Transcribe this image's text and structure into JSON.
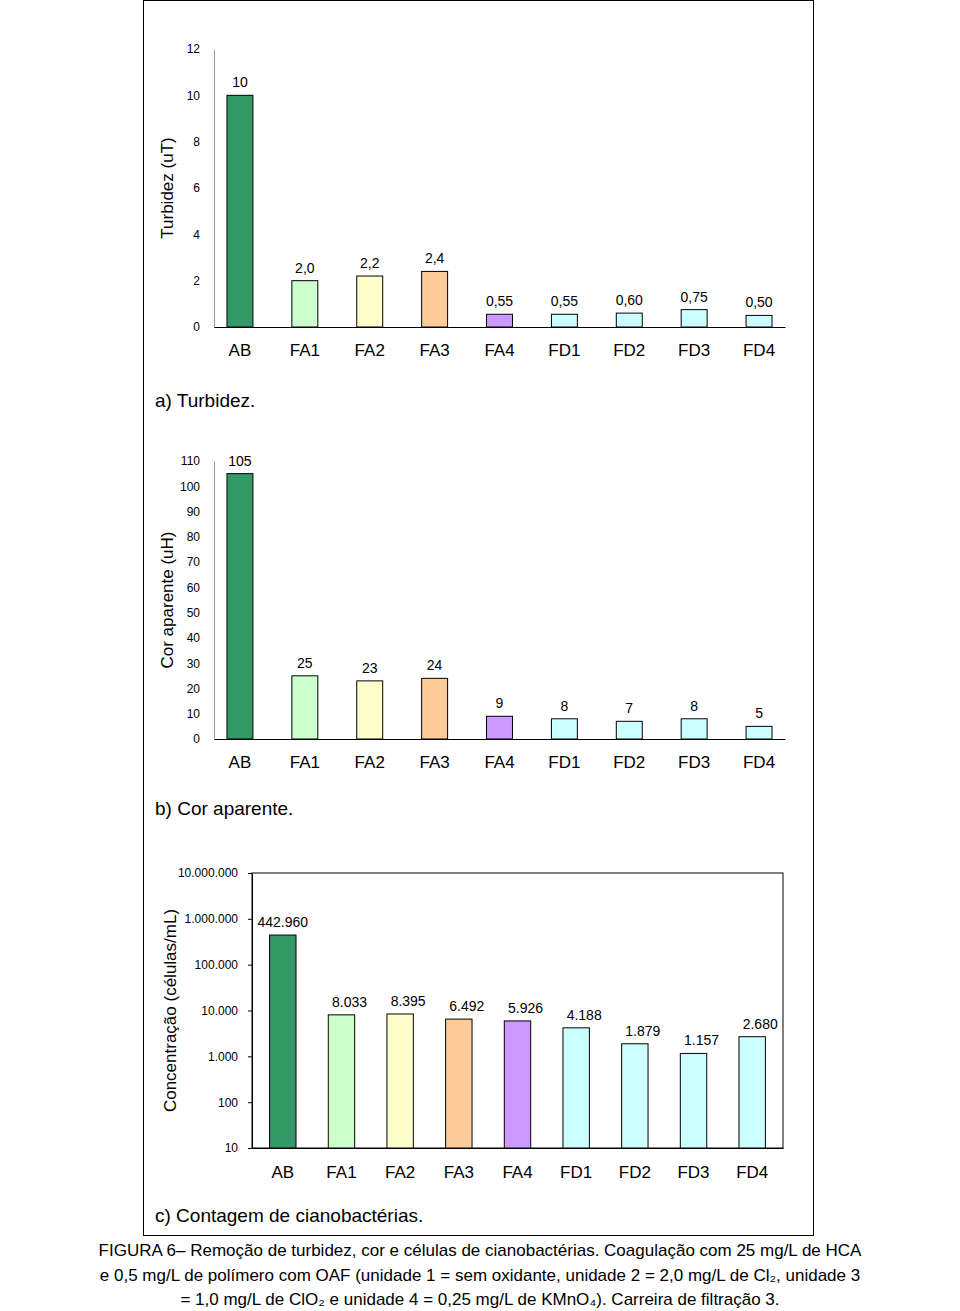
{
  "chart_data": [
    {
      "type": "bar",
      "title": "a) Turbidez.",
      "ylabel": "Turbidez (uT)",
      "categories": [
        "AB",
        "FA1",
        "FA2",
        "FA3",
        "FA4",
        "FD1",
        "FD2",
        "FD3",
        "FD4"
      ],
      "values": [
        10,
        2.0,
        2.2,
        2.4,
        0.55,
        0.55,
        0.6,
        0.75,
        0.5
      ],
      "value_labels": [
        "10",
        "2,0",
        "2,2",
        "2,4",
        "0,55",
        "0,55",
        "0,60",
        "0,75",
        "0,50"
      ],
      "colors": [
        "#339966",
        "#ccffcc",
        "#ffffcc",
        "#ffcc99",
        "#cc99ff",
        "#ccffff",
        "#ccffff",
        "#ccffff",
        "#ccffff"
      ],
      "ylim": [
        0,
        12
      ],
      "yticks": [
        0,
        2,
        4,
        6,
        8,
        10,
        12
      ],
      "data_labels": true
    },
    {
      "type": "bar",
      "title": "b) Cor aparente.",
      "ylabel": "Cor aparente (uH)",
      "categories": [
        "AB",
        "FA1",
        "FA2",
        "FA3",
        "FA4",
        "FD1",
        "FD2",
        "FD3",
        "FD4"
      ],
      "values": [
        105,
        25,
        23,
        24,
        9,
        8,
        7,
        8,
        5
      ],
      "colors": [
        "#339966",
        "#ccffcc",
        "#ffffcc",
        "#ffcc99",
        "#cc99ff",
        "#ccffff",
        "#ccffff",
        "#ccffff",
        "#ccffff"
      ],
      "ylim": [
        0,
        110
      ],
      "yticks": [
        0,
        10,
        20,
        30,
        40,
        50,
        60,
        70,
        80,
        90,
        100,
        110
      ],
      "data_labels": true
    },
    {
      "type": "bar",
      "title": "c) Contagem de cianobactérias.",
      "ylabel": "Concentração (células/mL)",
      "categories": [
        "AB",
        "FA1",
        "FA2",
        "FA3",
        "FA4",
        "FD1",
        "FD2",
        "FD3",
        "FD4"
      ],
      "values": [
        442960,
        8033,
        8395,
        6492,
        5926,
        4188,
        1879,
        1157,
        2680
      ],
      "value_labels": [
        "442.960",
        "8.033",
        "8.395",
        "6.492",
        "5.926",
        "4.188",
        "1.879",
        "1.157",
        "2.680"
      ],
      "colors": [
        "#339966",
        "#ccffcc",
        "#ffffcc",
        "#ffcc99",
        "#cc99ff",
        "#ccffff",
        "#ccffff",
        "#ccffff",
        "#ccffff"
      ],
      "log": "y",
      "ylim": [
        10,
        10000000
      ],
      "yticks": [
        10,
        100,
        {
          "value": 1000,
          "label": "1.000"
        },
        {
          "value": 10000,
          "label": "10.000"
        },
        {
          "value": 100000,
          "label": "100.000"
        },
        {
          "value": 1000000,
          "label": "1.000.000"
        },
        {
          "value": 10000000,
          "label": "10.000.000"
        }
      ],
      "data_labels": true
    }
  ],
  "caption": [
    "FIGURA 6– Remoção de turbidez, cor e células de cianobactérias. Coagulação com 25 mg/L de HCA",
    "e 0,5 mg/L de polímero com OAF (unidade 1 = sem oxidante, unidade 2 = 2,0 mg/L de Cl₂, unidade 3",
    "= 1,0 mg/L de ClO₂ e unidade 4 = 0,25 mg/L de KMnO₄). Carreira de filtração 3."
  ]
}
